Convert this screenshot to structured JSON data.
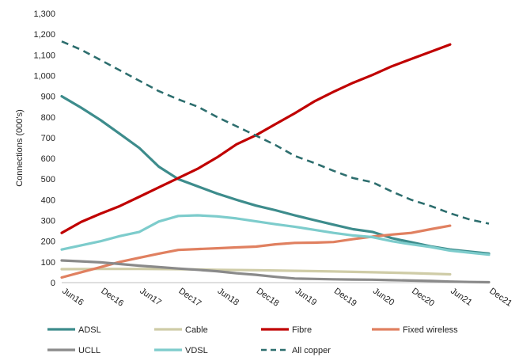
{
  "chart_data": {
    "type": "line",
    "ylabel": "Connections (000's)",
    "xlabel": "",
    "title": "",
    "ylim": [
      0,
      1300
    ],
    "yticks": [
      0,
      100,
      200,
      300,
      400,
      500,
      600,
      700,
      800,
      900,
      1000,
      1100,
      1200,
      1300
    ],
    "ytick_labels": [
      "0",
      "100",
      "200",
      "300",
      "400",
      "500",
      "600",
      "700",
      "800",
      "900",
      "1,000",
      "1,100",
      "1,200",
      "1,300"
    ],
    "categories": [
      "Jun16",
      "Dec16",
      "Jun17",
      "Dec17",
      "Jun18",
      "Dec18",
      "Jun19",
      "Dec19",
      "Jun20",
      "Dec20",
      "Jun21",
      "Dec21"
    ],
    "grid": false,
    "legend_position": "bottom",
    "series": [
      {
        "name": "ADSL",
        "color": "#3d8c8c",
        "dash": false,
        "x": [
          0,
          0.5,
          1,
          1.5,
          2,
          2.5,
          3,
          3.5,
          4,
          4.5,
          5,
          5.5,
          6,
          6.5,
          7,
          7.5,
          8,
          8.5,
          9,
          9.5,
          10,
          10.5,
          11
        ],
        "values": [
          900,
          845,
          785,
          718,
          650,
          560,
          500,
          465,
          430,
          400,
          372,
          350,
          325,
          302,
          280,
          258,
          245,
          215,
          195,
          175,
          160,
          150,
          140
        ]
      },
      {
        "name": "Cable",
        "color": "#cfcca7",
        "dash": false,
        "x": [
          0,
          1,
          2,
          3,
          4,
          5,
          6,
          7,
          8,
          9,
          10
        ],
        "values": [
          65,
          66,
          66,
          65,
          62,
          60,
          57,
          54,
          50,
          46,
          40
        ]
      },
      {
        "name": "Fibre",
        "color": "#c00000",
        "dash": false,
        "x": [
          0,
          0.5,
          1,
          1.5,
          2,
          2.5,
          3,
          3.5,
          4,
          4.5,
          5,
          5.5,
          6,
          6.5,
          7,
          7.5,
          8,
          8.5,
          9,
          9.5,
          10
        ],
        "values": [
          240,
          293,
          333,
          370,
          415,
          460,
          505,
          550,
          605,
          668,
          712,
          765,
          818,
          875,
          922,
          965,
          1003,
          1045,
          1080,
          1115,
          1150
        ]
      },
      {
        "name": "Fixed wireless",
        "color": "#e08060",
        "dash": false,
        "x": [
          0,
          0.5,
          1,
          1.5,
          2,
          2.5,
          3,
          3.5,
          4,
          4.5,
          5,
          5.5,
          6,
          6.5,
          7,
          7.5,
          8,
          8.5,
          9,
          9.5,
          10
        ],
        "values": [
          25,
          50,
          75,
          100,
          120,
          140,
          158,
          162,
          166,
          170,
          174,
          185,
          192,
          193,
          196,
          210,
          222,
          232,
          240,
          258,
          275
        ]
      },
      {
        "name": "UCLL",
        "color": "#8a8a8a",
        "dash": false,
        "x": [
          0,
          0.5,
          1,
          1.5,
          2,
          2.5,
          3,
          3.5,
          4,
          4.5,
          5,
          5.5,
          6,
          6.5,
          7,
          7.5,
          8,
          8.5,
          9,
          9.5,
          10,
          10.5,
          11
        ],
        "values": [
          107,
          103,
          98,
          90,
          82,
          75,
          68,
          62,
          55,
          45,
          38,
          28,
          20,
          18,
          16,
          15,
          14,
          12,
          10,
          8,
          5,
          3,
          2
        ]
      },
      {
        "name": "VDSL",
        "color": "#7dcccc",
        "dash": false,
        "x": [
          0,
          0.5,
          1,
          1.5,
          2,
          2.5,
          3,
          3.5,
          4,
          4.5,
          5,
          5.5,
          6,
          6.5,
          7,
          7.5,
          8,
          8.5,
          9,
          9.5,
          10,
          10.5,
          11
        ],
        "values": [
          160,
          180,
          200,
          225,
          245,
          295,
          322,
          325,
          320,
          310,
          296,
          282,
          270,
          255,
          240,
          228,
          220,
          200,
          185,
          172,
          155,
          145,
          135
        ]
      },
      {
        "name": "All copper",
        "color": "#2d6e6e",
        "dash": true,
        "x": [
          0,
          0.5,
          1,
          1.5,
          2,
          2.5,
          3,
          3.5,
          4,
          4.5,
          5,
          5.5,
          6,
          6.5,
          7,
          7.5,
          8,
          8.5,
          9,
          9.5,
          10,
          10.5,
          11
        ],
        "values": [
          1165,
          1125,
          1075,
          1025,
          975,
          925,
          885,
          850,
          800,
          755,
          710,
          665,
          612,
          578,
          540,
          505,
          485,
          440,
          400,
          370,
          335,
          305,
          285
        ]
      }
    ]
  }
}
